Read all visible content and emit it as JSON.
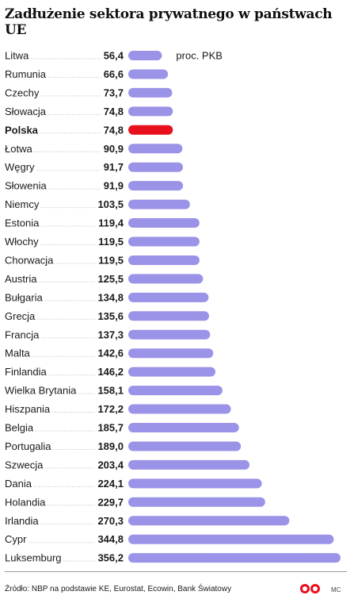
{
  "chart_data": {
    "type": "bar",
    "title": "Zadłużenie sektora prywatnego w państwach UE",
    "unit_label": "proc. PKB",
    "orientation": "horizontal",
    "highlight": "Polska",
    "colors": {
      "bar": "#9b93e8",
      "highlight": "#e8101c",
      "leader": "#b8b8b8"
    },
    "categories": [
      "Litwa",
      "Rumunia",
      "Czechy",
      "Słowacja",
      "Polska",
      "Łotwa",
      "Węgry",
      "Słowenia",
      "Niemcy",
      "Estonia",
      "Włochy",
      "Chorwacja",
      "Austria",
      "Bułgaria",
      "Grecja",
      "Francja",
      "Malta",
      "Finlandia",
      "Wielka Brytania",
      "Hiszpania",
      "Belgia",
      "Portugalia",
      "Szwecja",
      "Dania",
      "Holandia",
      "Irlandia",
      "Cypr",
      "Luksemburg"
    ],
    "value_labels": [
      "56,4",
      "66,6",
      "73,7",
      "74,8",
      "74,8",
      "90,9",
      "91,7",
      "91,9",
      "103,5",
      "119,4",
      "119,5",
      "119,5",
      "125,5",
      "134,8",
      "135,6",
      "137,3",
      "142,6",
      "146,2",
      "158,1",
      "172,2",
      "185,7",
      "189,0",
      "203,4",
      "224,1",
      "229,7",
      "270,3",
      "344,8",
      "356,2"
    ],
    "values": [
      56.4,
      66.6,
      73.7,
      74.8,
      74.8,
      90.9,
      91.7,
      91.9,
      103.5,
      119.4,
      119.5,
      119.5,
      125.5,
      134.8,
      135.6,
      137.3,
      142.6,
      146.2,
      158.1,
      172.2,
      185.7,
      189.0,
      203.4,
      224.1,
      229.7,
      270.3,
      344.8,
      356.2
    ],
    "xlim": [
      0,
      356.2
    ]
  },
  "footer": {
    "source": "Źródło: NBP na podstawie KE, Eurostat, Ecowin, Bank Światowy",
    "logo_icon": "publisher-logo-icon",
    "initials": "MC"
  }
}
